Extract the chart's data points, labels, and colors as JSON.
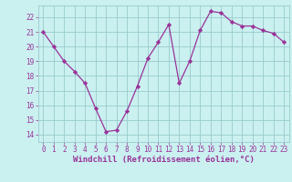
{
  "x_values": [
    0,
    1,
    2,
    3,
    4,
    5,
    6,
    7,
    8,
    9,
    10,
    11,
    12,
    13,
    14,
    15,
    16,
    17,
    18,
    19,
    20,
    21,
    22,
    23
  ],
  "y_values": [
    21,
    20,
    19,
    18.3,
    17.5,
    15.8,
    14.2,
    14.3,
    15.6,
    17.3,
    19.2,
    20.3,
    21.5,
    17.5,
    19.0,
    21.1,
    22.4,
    22.3,
    21.7,
    21.4,
    21.4,
    21.1,
    20.9,
    20.3
  ],
  "line_color": "#993399",
  "marker": "D",
  "marker_size": 2.2,
  "bg_color": "#caf0f0",
  "grid_color": "#99cccc",
  "xlabel": "Windchill (Refroidissement éolien,°C)",
  "xlim": [
    -0.5,
    23.5
  ],
  "ylim": [
    13.5,
    22.8
  ],
  "yticks": [
    14,
    15,
    16,
    17,
    18,
    19,
    20,
    21,
    22
  ],
  "xticks": [
    0,
    1,
    2,
    3,
    4,
    5,
    6,
    7,
    8,
    9,
    10,
    11,
    12,
    13,
    14,
    15,
    16,
    17,
    18,
    19,
    20,
    21,
    22,
    23
  ],
  "tick_color": "#993399",
  "tick_fontsize": 5.5,
  "xlabel_fontsize": 6.5,
  "linewidth": 0.9
}
